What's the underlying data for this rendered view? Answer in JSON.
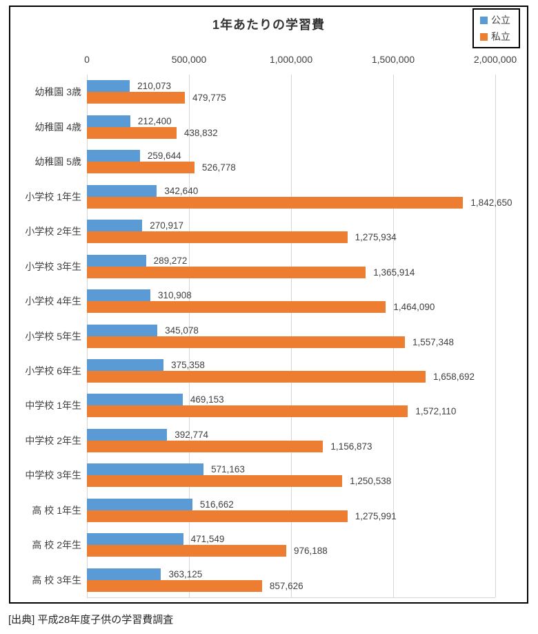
{
  "chart": {
    "source_note": "[出典] 平成28年度子供の学習費調査"
  },
  "chart_data": {
    "type": "bar",
    "orientation": "horizontal",
    "title": "1年あたりの学習費",
    "categories": [
      "幼稚園 3歳",
      "幼稚園 4歳",
      "幼稚園 5歳",
      "小学校 1年生",
      "小学校 2年生",
      "小学校 3年生",
      "小学校 4年生",
      "小学校 5年生",
      "小学校 6年生",
      "中学校 1年生",
      "中学校 2年生",
      "中学校 3年生",
      "高 校 1年生",
      "高 校 2年生",
      "高 校 3年生"
    ],
    "series": [
      {
        "name": "公立",
        "color": "#5B9BD5",
        "values": [
          210073,
          212400,
          259644,
          342640,
          270917,
          289272,
          310908,
          345078,
          375358,
          469153,
          392774,
          571163,
          516662,
          471549,
          363125
        ]
      },
      {
        "name": "私立",
        "color": "#ED7D31",
        "values": [
          479775,
          438832,
          526778,
          1842650,
          1275934,
          1365914,
          1464090,
          1557348,
          1658692,
          1572110,
          1156873,
          1250538,
          1275991,
          976188,
          857626
        ]
      }
    ],
    "xlim": [
      0,
      2000000
    ],
    "x_ticks": [
      0,
      500000,
      1000000,
      1500000,
      2000000
    ],
    "grid": true,
    "legend_position": "top-right",
    "value_labels": true
  }
}
